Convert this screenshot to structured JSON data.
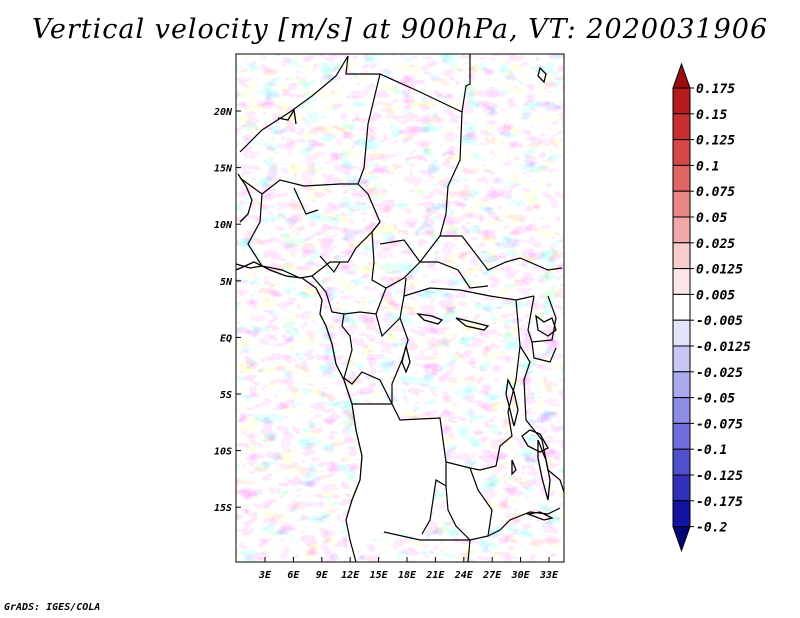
{
  "title": "Vertical velocity [m/s] at 900hPa, VT: 2020031906",
  "credit": "GrADS: IGES/COLA",
  "map": {
    "x_ticks": [
      "3E",
      "6E",
      "9E",
      "12E",
      "15E",
      "18E",
      "21E",
      "24E",
      "27E",
      "30E",
      "33E"
    ],
    "y_ticks": [
      "20N",
      "15N",
      "10N",
      "5N",
      "EQ",
      "5S",
      "10S",
      "15S"
    ]
  },
  "colorbar": {
    "labels": [
      "0.175",
      "0.15",
      "0.125",
      "0.1",
      "0.075",
      "0.05",
      "0.025",
      "0.0125",
      "0.005",
      "-0.005",
      "-0.0125",
      "-0.025",
      "-0.05",
      "-0.075",
      "-0.1",
      "-0.125",
      "-0.175",
      "-0.2"
    ],
    "colors": [
      "#9c0d0d",
      "#b61c1c",
      "#c83030",
      "#d64848",
      "#e06666",
      "#e98686",
      "#f2a8a8",
      "#f8cccc",
      "#fce6e6",
      "#ffffff",
      "#e3e3fb",
      "#c7c7f5",
      "#aaaaef",
      "#8d8de6",
      "#6f6fdc",
      "#5050ce",
      "#3030bc",
      "#1212a4",
      "#050578"
    ]
  }
}
